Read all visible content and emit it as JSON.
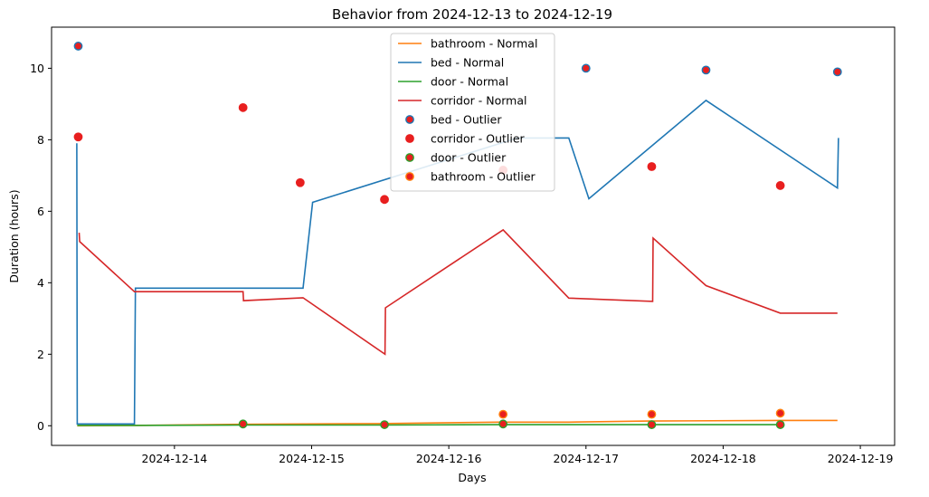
{
  "chart_data": {
    "type": "line",
    "title": "Behavior from 2024-12-13 to 2024-12-19",
    "xlabel": "Days",
    "ylabel": "Duration (hours)",
    "xlim": [
      "2024-12-13 02:30",
      "2024-12-19 06:00"
    ],
    "ylim": [
      -0.55,
      11.15
    ],
    "xticks": [
      "2024-12-14",
      "2024-12-15",
      "2024-12-16",
      "2024-12-17",
      "2024-12-18",
      "2024-12-19"
    ],
    "yticks": [
      0,
      2,
      4,
      6,
      8,
      10
    ],
    "legend_position": "top-center",
    "grid": false,
    "series": [
      {
        "name": "bathroom - Normal",
        "kind": "line",
        "color": "#ff7f0e",
        "points": [
          [
            "2024-12-13 07:00",
            0.0
          ],
          [
            "2024-12-13 17:00",
            0.01
          ],
          [
            "2024-12-14 12:00",
            0.04
          ],
          [
            "2024-12-15 12:00",
            0.06
          ],
          [
            "2024-12-16 08:50",
            0.1
          ],
          [
            "2024-12-16 21:00",
            0.1
          ],
          [
            "2024-12-17 11:00",
            0.13
          ],
          [
            "2024-12-18 10:00",
            0.15
          ],
          [
            "2024-12-18 20:00",
            0.15
          ]
        ]
      },
      {
        "name": "bed - Normal",
        "kind": "line",
        "color": "#1f77b4",
        "points": [
          [
            "2024-12-13 06:55",
            7.9
          ],
          [
            "2024-12-13 07:00",
            0.05
          ],
          [
            "2024-12-13 17:00",
            0.05
          ],
          [
            "2024-12-13 17:10",
            3.85
          ],
          [
            "2024-12-14 22:30",
            3.85
          ],
          [
            "2024-12-15 00:10",
            6.25
          ],
          [
            "2024-12-16 12:00",
            8.05
          ],
          [
            "2024-12-16 21:00",
            8.05
          ],
          [
            "2024-12-17 00:30",
            6.35
          ],
          [
            "2024-12-17 21:00",
            9.1
          ],
          [
            "2024-12-18 20:00",
            6.65
          ],
          [
            "2024-12-18 20:10",
            8.05
          ]
        ]
      },
      {
        "name": "door - Normal",
        "kind": "line",
        "color": "#2ca02c",
        "points": [
          [
            "2024-12-13 07:00",
            0.01
          ],
          [
            "2024-12-13 17:00",
            0.01
          ],
          [
            "2024-12-14 12:00",
            0.02
          ],
          [
            "2024-12-15 12:00",
            0.02
          ],
          [
            "2024-12-16 08:50",
            0.03
          ],
          [
            "2024-12-17 11:00",
            0.03
          ],
          [
            "2024-12-18 10:00",
            0.03
          ]
        ]
      },
      {
        "name": "corridor - Normal",
        "kind": "line",
        "color": "#d62728",
        "points": [
          [
            "2024-12-13 07:20",
            5.4
          ],
          [
            "2024-12-13 07:25",
            5.15
          ],
          [
            "2024-12-13 17:00",
            3.75
          ],
          [
            "2024-12-14 12:00",
            3.75
          ],
          [
            "2024-12-14 12:05",
            3.5
          ],
          [
            "2024-12-14 22:30",
            3.58
          ],
          [
            "2024-12-15 12:50",
            2.0
          ],
          [
            "2024-12-15 12:55",
            3.3
          ],
          [
            "2024-12-16 09:30",
            5.48
          ],
          [
            "2024-12-16 21:00",
            3.57
          ],
          [
            "2024-12-17 11:40",
            3.48
          ],
          [
            "2024-12-17 11:45",
            5.25
          ],
          [
            "2024-12-17 21:00",
            3.92
          ],
          [
            "2024-12-18 10:00",
            3.15
          ],
          [
            "2024-12-18 20:00",
            3.15
          ]
        ]
      },
      {
        "name": "bed - Outlier",
        "kind": "scatter",
        "color": "#e81f1f",
        "edge": "#1f77b4",
        "points": [
          [
            "2024-12-13 07:10",
            10.62
          ],
          [
            "2024-12-17 00:00",
            10.0
          ],
          [
            "2024-12-17 21:00",
            9.95
          ],
          [
            "2024-12-18 20:00",
            9.9
          ]
        ]
      },
      {
        "name": "corridor - Outlier",
        "kind": "scatter",
        "color": "#e81f1f",
        "edge": "#e81f1f",
        "points": [
          [
            "2024-12-13 07:10",
            8.08
          ],
          [
            "2024-12-14 12:00",
            8.9
          ],
          [
            "2024-12-14 22:00",
            6.8
          ],
          [
            "2024-12-15 12:45",
            6.33
          ],
          [
            "2024-12-16 09:30",
            7.15
          ],
          [
            "2024-12-17 11:30",
            7.25
          ],
          [
            "2024-12-18 10:00",
            6.72
          ]
        ]
      },
      {
        "name": "door - Outlier",
        "kind": "scatter",
        "color": "#e81f1f",
        "edge": "#2ca02c",
        "points": [
          [
            "2024-12-14 12:00",
            0.05
          ],
          [
            "2024-12-15 12:45",
            0.03
          ],
          [
            "2024-12-16 09:30",
            0.05
          ],
          [
            "2024-12-17 11:30",
            0.03
          ],
          [
            "2024-12-18 10:00",
            0.03
          ]
        ]
      },
      {
        "name": "bathroom - Outlier",
        "kind": "scatter",
        "color": "#e81f1f",
        "edge": "#ff7f0e",
        "points": [
          [
            "2024-12-16 09:30",
            0.32
          ],
          [
            "2024-12-17 11:30",
            0.32
          ],
          [
            "2024-12-18 10:00",
            0.35
          ]
        ]
      }
    ]
  }
}
